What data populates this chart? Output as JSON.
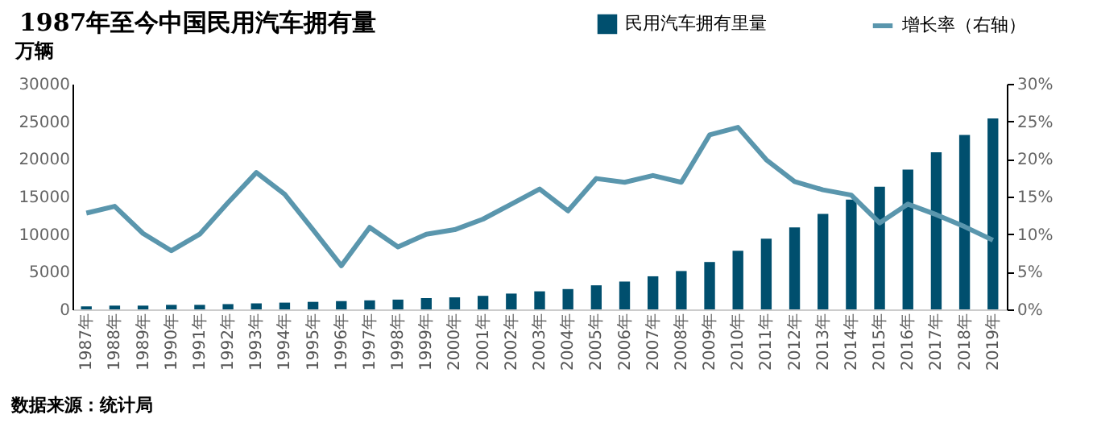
{
  "chart_data": {
    "type": "bar",
    "title": "1987年至今中国民用汽车拥有量",
    "ylabel": "万辆",
    "categories": [
      "1987年",
      "1988年",
      "1989年",
      "1990年",
      "1991年",
      "1992年",
      "1993年",
      "1994年",
      "1995年",
      "1996年",
      "1997年",
      "1998年",
      "1999年",
      "2000年",
      "2001年",
      "2002年",
      "2003年",
      "2004年",
      "2005年",
      "2006年",
      "2007年",
      "2008年",
      "2009年",
      "2010年",
      "2011年",
      "2012年",
      "2013年",
      "2014年",
      "2015年",
      "2016年",
      "2017年",
      "2018年",
      "2019年"
    ],
    "series": [
      {
        "name": "民用汽车拥有里量",
        "color": "#004f6e",
        "values": [
          400,
          500,
          500,
          600,
          600,
          700,
          800,
          900,
          1000,
          1100,
          1200,
          1300,
          1500,
          1600,
          1800,
          2100,
          2400,
          2700,
          3200,
          3700,
          4400,
          5100,
          6300,
          7800,
          9400,
          10900,
          12700,
          14600,
          16300,
          18600,
          20900,
          23200,
          25400
        ]
      },
      {
        "name": "增长率（右轴）",
        "type": "line",
        "axis": "y2",
        "color": "#5a96ad",
        "values": [
          12.8,
          13.7,
          10.1,
          7.8,
          10.0,
          14.2,
          18.2,
          15.3,
          10.6,
          5.8,
          10.9,
          8.3,
          10.0,
          10.6,
          12.0,
          14.0,
          16.0,
          13.1,
          17.4,
          16.9,
          17.8,
          16.9,
          23.2,
          24.2,
          19.9,
          17.0,
          15.9,
          15.2,
          11.5,
          14.0,
          12.6,
          11.0,
          9.2
        ]
      }
    ],
    "ylim": [
      0,
      30000
    ],
    "yticks": [
      0,
      5000,
      10000,
      15000,
      20000,
      25000,
      30000
    ],
    "y2lim": [
      0,
      30
    ],
    "y2ticks": [
      {
        "value": 0,
        "label": "0%"
      },
      {
        "value": 5,
        "label": "5%"
      },
      {
        "value": 10,
        "label": "10%"
      },
      {
        "value": 15,
        "label": "15%"
      },
      {
        "value": 20,
        "label": "20%"
      },
      {
        "value": 25,
        "label": "25%"
      },
      {
        "value": 30,
        "label": "30%"
      }
    ],
    "legend": "top right",
    "grid": false,
    "marker": "none",
    "line_style": "solid",
    "annotations": [
      "数据来源：统计局"
    ]
  }
}
